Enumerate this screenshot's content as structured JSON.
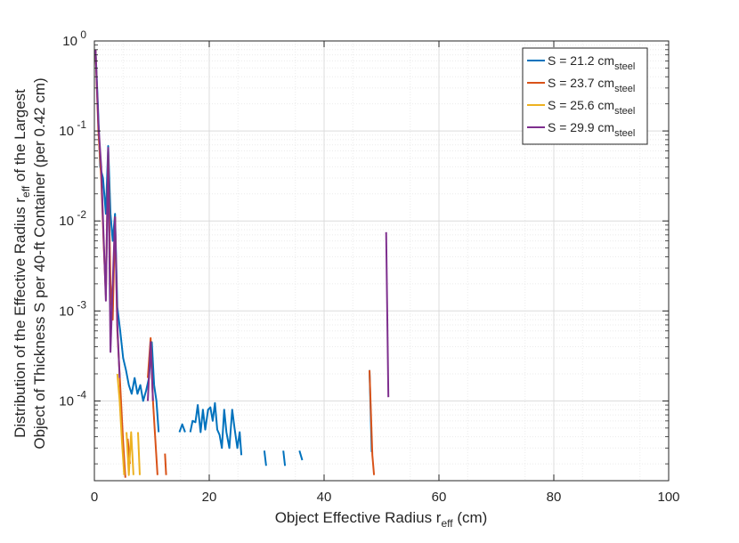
{
  "chart_data": {
    "type": "line",
    "xlabel": "Object Effective Radius r",
    "xlabel_sub": "eff",
    "xlabel_tail": "  (cm)",
    "ylabel_line1": "Distribution of the Effective Radius r",
    "ylabel_line1_sub": "eff",
    "ylabel_line1_tail": "  of the Largest",
    "ylabel_line2": "Object of Thickness S per 40-ft Container (per 0.42 cm)",
    "xlim": [
      0,
      100
    ],
    "ylim": [
      1.3e-05,
      1.0
    ],
    "yscale": "log",
    "grid": true,
    "legend_position": "top-right",
    "x_ticks": [
      {
        "value": 0,
        "label": "0"
      },
      {
        "value": 20,
        "label": "20"
      },
      {
        "value": 40,
        "label": "40"
      },
      {
        "value": 60,
        "label": "60"
      },
      {
        "value": 80,
        "label": "80"
      },
      {
        "value": 100,
        "label": "100"
      }
    ],
    "y_ticks": [
      {
        "value": 1,
        "base": "10",
        "exp": "0"
      },
      {
        "value": 0.1,
        "base": "10",
        "exp": "-1"
      },
      {
        "value": 0.01,
        "base": "10",
        "exp": "-2"
      },
      {
        "value": 0.001,
        "base": "10",
        "exp": "-3"
      },
      {
        "value": 0.0001,
        "base": "10",
        "exp": "-4"
      }
    ],
    "series": [
      {
        "name": "S = 21.2 cm",
        "name_sub": "steel",
        "color": "#0072BD",
        "segments": [
          [
            [
              0.2,
              0.8
            ],
            [
              0.6,
              0.2
            ],
            [
              1.0,
              0.04
            ],
            [
              1.5,
              0.03
            ],
            [
              2.0,
              0.012
            ],
            [
              2.4,
              0.068
            ],
            [
              2.8,
              0.012
            ],
            [
              3.2,
              0.006
            ],
            [
              3.6,
              0.012
            ],
            [
              4.0,
              0.0011
            ],
            [
              4.5,
              0.0006
            ],
            [
              5.0,
              0.0003
            ],
            [
              5.5,
              0.00022
            ],
            [
              6.0,
              0.00015
            ],
            [
              6.5,
              0.00012
            ],
            [
              7.0,
              0.00018
            ],
            [
              7.5,
              0.00012
            ],
            [
              8.0,
              0.00015
            ],
            [
              8.5,
              0.0001
            ],
            [
              9.0,
              0.00013
            ],
            [
              9.5,
              0.00018
            ],
            [
              10.0,
              0.00045
            ],
            [
              10.4,
              0.00015
            ],
            [
              10.8,
              0.0001
            ],
            [
              11.2,
              4.5e-05
            ]
          ],
          [
            [
              14.8,
              4.5e-05
            ],
            [
              15.3,
              5.5e-05
            ],
            [
              15.8,
              4.5e-05
            ]
          ],
          [
            [
              16.7,
              4.5e-05
            ],
            [
              17.1,
              6e-05
            ],
            [
              17.6,
              5.8e-05
            ],
            [
              18.0,
              9e-05
            ],
            [
              18.5,
              4.5e-05
            ],
            [
              18.9,
              8e-05
            ],
            [
              19.3,
              4.8e-05
            ],
            [
              19.8,
              8e-05
            ],
            [
              20.2,
              8.5e-05
            ],
            [
              20.6,
              6e-05
            ],
            [
              21.0,
              9.5e-05
            ],
            [
              21.4,
              4.8e-05
            ],
            [
              21.8,
              4.2e-05
            ],
            [
              22.2,
              3e-05
            ],
            [
              22.6,
              8e-05
            ],
            [
              23.0,
              4.5e-05
            ],
            [
              23.5,
              3e-05
            ],
            [
              24.0,
              8e-05
            ],
            [
              24.4,
              5e-05
            ],
            [
              24.9,
              3e-05
            ],
            [
              25.3,
              4.5e-05
            ],
            [
              25.6,
              2.5e-05
            ]
          ],
          [
            [
              29.6,
              2.8e-05
            ],
            [
              29.9,
              1.9e-05
            ]
          ],
          [
            [
              32.9,
              2.8e-05
            ],
            [
              33.2,
              1.9e-05
            ]
          ],
          [
            [
              35.7,
              2.8e-05
            ],
            [
              36.2,
              2.2e-05
            ]
          ],
          [
            [
              47.9,
              0.00022
            ],
            [
              48.3,
              2.7e-05
            ]
          ]
        ]
      },
      {
        "name": "S = 23.7 cm",
        "name_sub": "steel",
        "color": "#D95319",
        "segments": [
          [
            [
              0.2,
              0.8
            ],
            [
              0.7,
              0.1
            ],
            [
              1.2,
              0.03
            ],
            [
              1.6,
              0.006
            ],
            [
              2.0,
              0.0015
            ],
            [
              2.4,
              0.06
            ],
            [
              2.8,
              0.002
            ],
            [
              3.2,
              0.0008
            ],
            [
              3.6,
              0.011
            ],
            [
              4.0,
              0.0006
            ],
            [
              4.5,
              0.00015
            ],
            [
              5.0,
              3.5e-05
            ],
            [
              5.4,
              1.4e-05
            ]
          ],
          [
            [
              5.8,
              3.8e-05
            ],
            [
              6.2,
              2e-05
            ]
          ],
          [
            [
              9.3,
              0.00018
            ],
            [
              9.8,
              0.0005
            ],
            [
              10.2,
              0.0001
            ],
            [
              10.6,
              3.8e-05
            ],
            [
              11.0,
              1.5e-05
            ]
          ],
          [
            [
              12.3,
              2.6e-05
            ],
            [
              12.5,
              1.5e-05
            ]
          ],
          [
            [
              47.9,
              0.00022
            ],
            [
              48.4,
              2.5e-05
            ],
            [
              48.7,
              1.5e-05
            ]
          ]
        ]
      },
      {
        "name": "S = 25.6 cm",
        "name_sub": "steel",
        "color": "#EDB120",
        "segments": [
          [
            [
              4.0,
              0.0002
            ],
            [
              4.4,
              0.0001
            ],
            [
              4.8,
              3.5e-05
            ],
            [
              5.2,
              1.5e-05
            ]
          ],
          [
            [
              5.6,
              4.5e-05
            ],
            [
              6.0,
              1.5e-05
            ],
            [
              6.4,
              4.5e-05
            ],
            [
              6.8,
              1.5e-05
            ]
          ],
          [
            [
              7.6,
              4.5e-05
            ],
            [
              7.9,
              1.5e-05
            ]
          ]
        ]
      },
      {
        "name": "S = 29.9 cm",
        "name_sub": "steel",
        "color": "#7E2F8E",
        "segments": [
          [
            [
              0.2,
              0.8
            ],
            [
              0.7,
              0.12
            ],
            [
              1.2,
              0.04
            ],
            [
              1.6,
              0.007
            ],
            [
              2.0,
              0.0013
            ],
            [
              2.4,
              0.065
            ],
            [
              2.8,
              0.00035
            ],
            [
              3.2,
              0.002
            ],
            [
              3.6,
              0.011
            ],
            [
              4.0,
              0.0007
            ],
            [
              4.4,
              0.00018
            ]
          ],
          [
            [
              9.3,
              0.0001
            ],
            [
              9.8,
              0.00045
            ],
            [
              10.2,
              0.0001
            ]
          ],
          [
            [
              50.8,
              0.0075
            ],
            [
              51.2,
              0.00011
            ]
          ]
        ]
      }
    ]
  }
}
